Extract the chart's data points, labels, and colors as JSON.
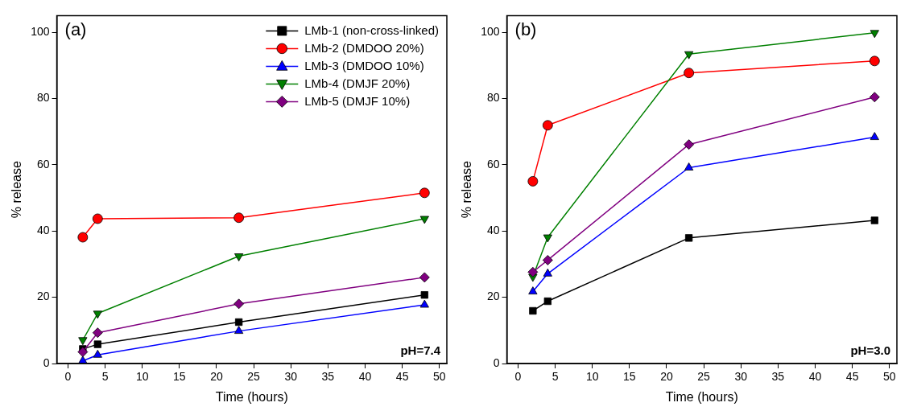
{
  "chart_data": [
    {
      "type": "line",
      "annotations": [
        "(a)",
        "pH=7.4"
      ],
      "xlabel": "Time (hours)",
      "ylabel": "% release",
      "xlim": [
        -1.5,
        51
      ],
      "xticks": [
        0,
        5,
        10,
        15,
        20,
        25,
        30,
        35,
        40,
        45,
        50
      ],
      "ylim": [
        0,
        105
      ],
      "yticks": [
        0,
        20,
        40,
        60,
        80,
        100
      ],
      "grid": false,
      "legend": "top right",
      "series": [
        {
          "name": "LMb-1 (non-cross-linked)",
          "color": "#000000",
          "marker": "square",
          "x": [
            2,
            4,
            23,
            48
          ],
          "values": [
            4.4,
            5.8,
            12.5,
            20.7
          ]
        },
        {
          "name": "LMb-2 (DMDOO 20%)",
          "color": "#ff0000",
          "marker": "circle",
          "x": [
            2,
            4,
            23,
            48
          ],
          "values": [
            38.1,
            43.7,
            44.0,
            51.5
          ]
        },
        {
          "name": "LMb-3 (DMDOO 10%)",
          "color": "#0000ff",
          "marker": "triangle",
          "x": [
            2,
            4,
            23,
            48
          ],
          "values": [
            0.8,
            2.6,
            9.8,
            17.7
          ]
        },
        {
          "name": "LMb-4 (DMJF 20%)",
          "color": "#008000",
          "marker": "triangle-down",
          "x": [
            2,
            4,
            23,
            48
          ],
          "values": [
            7.1,
            15.1,
            32.4,
            43.7
          ]
        },
        {
          "name": "LMb-5 (DMJF 10%)",
          "color": "#800080",
          "marker": "diamond",
          "x": [
            2,
            4,
            23,
            48
          ],
          "values": [
            3.5,
            9.3,
            18.0,
            26.0
          ]
        }
      ]
    },
    {
      "type": "line",
      "annotations": [
        "(b)",
        "pH=3.0"
      ],
      "xlabel": "Time (hours)",
      "ylabel": "% release",
      "xlim": [
        -1.5,
        51
      ],
      "xticks": [
        0,
        5,
        10,
        15,
        20,
        25,
        30,
        35,
        40,
        45,
        50
      ],
      "ylim": [
        0,
        105
      ],
      "yticks": [
        0,
        20,
        40,
        60,
        80,
        100
      ],
      "grid": false,
      "series": [
        {
          "color": "#000000",
          "marker": "square",
          "x": [
            2,
            4,
            23,
            48
          ],
          "values": [
            15.9,
            18.8,
            37.9,
            43.2
          ]
        },
        {
          "color": "#ff0000",
          "marker": "circle",
          "x": [
            2,
            4,
            23,
            48
          ],
          "values": [
            55.0,
            71.9,
            87.7,
            91.3
          ]
        },
        {
          "color": "#0000ff",
          "marker": "triangle",
          "x": [
            2,
            4,
            23,
            48
          ],
          "values": [
            21.7,
            27.1,
            59.1,
            68.3
          ]
        },
        {
          "color": "#008000",
          "marker": "triangle-down",
          "x": [
            2,
            4,
            23,
            48
          ],
          "values": [
            26.2,
            38.1,
            93.4,
            99.8
          ]
        },
        {
          "color": "#800080",
          "marker": "diamond",
          "x": [
            2,
            4,
            23,
            48
          ],
          "values": [
            27.6,
            31.2,
            66.1,
            80.4
          ]
        }
      ]
    }
  ]
}
